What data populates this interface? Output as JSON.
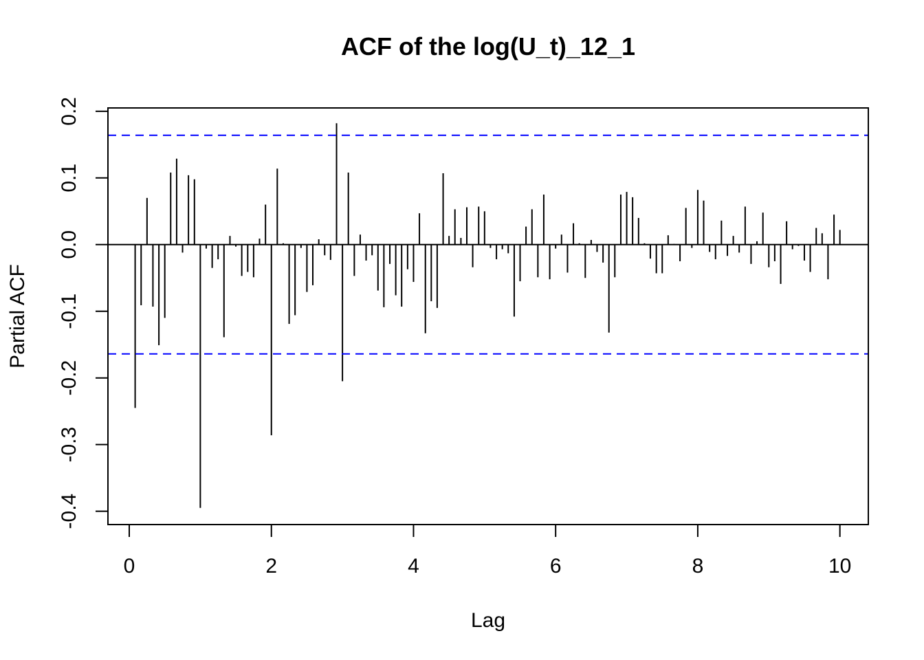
{
  "chart_data": {
    "type": "bar",
    "title": "ACF of the log(U_t)_12_1",
    "xlabel": "Lag",
    "ylabel": "Partial ACF",
    "xlim": [
      -0.3,
      10.4
    ],
    "ylim": [
      -0.42,
      0.205
    ],
    "xticks": [
      0,
      2,
      4,
      6,
      8,
      10
    ],
    "yticks": [
      -0.4,
      -0.3,
      -0.2,
      -0.1,
      0.0,
      0.1,
      0.2
    ],
    "ci": [
      0.164,
      -0.164
    ],
    "ci_color": "#0000ff",
    "bar_color": "#000000",
    "lags": [
      0.083,
      0.167,
      0.25,
      0.333,
      0.417,
      0.5,
      0.583,
      0.667,
      0.75,
      0.833,
      0.917,
      1.0,
      1.083,
      1.167,
      1.25,
      1.333,
      1.417,
      1.5,
      1.583,
      1.667,
      1.75,
      1.833,
      1.917,
      2.0,
      2.083,
      2.167,
      2.25,
      2.333,
      2.417,
      2.5,
      2.583,
      2.667,
      2.75,
      2.833,
      2.917,
      3.0,
      3.083,
      3.167,
      3.25,
      3.333,
      3.417,
      3.5,
      3.583,
      3.667,
      3.75,
      3.833,
      3.917,
      4.0,
      4.083,
      4.167,
      4.25,
      4.333,
      4.417,
      4.5,
      4.583,
      4.667,
      4.75,
      4.833,
      4.917,
      5.0,
      5.083,
      5.167,
      5.25,
      5.333,
      5.417,
      5.5,
      5.583,
      5.667,
      5.75,
      5.833,
      5.917,
      6.0,
      6.083,
      6.167,
      6.25,
      6.333,
      6.417,
      6.5,
      6.583,
      6.667,
      6.75,
      6.833,
      6.917,
      7.0,
      7.083,
      7.167,
      7.25,
      7.333,
      7.417,
      7.5,
      7.583,
      7.667,
      7.75,
      7.833,
      7.917,
      8.0,
      8.083,
      8.167,
      8.25,
      8.333,
      8.417,
      8.5,
      8.583,
      8.667,
      8.75,
      8.833,
      8.917,
      9.0,
      9.083,
      9.167,
      9.25,
      9.333,
      9.417,
      9.5,
      9.583,
      9.667,
      9.75,
      9.833,
      9.917,
      10.0
    ],
    "values": [
      -0.245,
      -0.091,
      0.07,
      -0.093,
      -0.151,
      -0.11,
      0.108,
      0.129,
      -0.012,
      0.104,
      0.098,
      -0.395,
      -0.006,
      -0.035,
      -0.022,
      -0.139,
      0.013,
      -0.003,
      -0.047,
      -0.041,
      -0.049,
      0.009,
      0.06,
      -0.286,
      0.114,
      0.002,
      -0.119,
      -0.106,
      -0.005,
      -0.071,
      -0.061,
      0.008,
      -0.016,
      -0.023,
      0.182,
      -0.205,
      0.108,
      -0.047,
      0.015,
      -0.024,
      -0.016,
      -0.069,
      -0.094,
      -0.029,
      -0.076,
      -0.093,
      -0.037,
      -0.056,
      0.047,
      -0.133,
      -0.085,
      -0.095,
      0.107,
      0.013,
      0.053,
      0.01,
      0.056,
      -0.034,
      0.057,
      0.05,
      -0.005,
      -0.022,
      -0.007,
      -0.013,
      -0.108,
      -0.055,
      0.027,
      0.053,
      -0.049,
      0.075,
      -0.052,
      -0.006,
      0.015,
      -0.042,
      0.032,
      0.002,
      -0.05,
      0.007,
      -0.011,
      -0.027,
      -0.132,
      -0.049,
      0.075,
      0.079,
      0.071,
      0.04,
      0.002,
      -0.021,
      -0.043,
      -0.043,
      0.014,
      0.001,
      -0.025,
      0.055,
      -0.005,
      0.082,
      0.066,
      -0.011,
      -0.022,
      0.036,
      -0.017,
      0.013,
      -0.012,
      0.057,
      -0.029,
      0.005,
      0.048,
      -0.034,
      -0.025,
      -0.059,
      0.035,
      -0.007,
      -0.002,
      -0.024,
      -0.041,
      0.025,
      0.017,
      -0.052,
      0.045,
      0.022
    ]
  }
}
